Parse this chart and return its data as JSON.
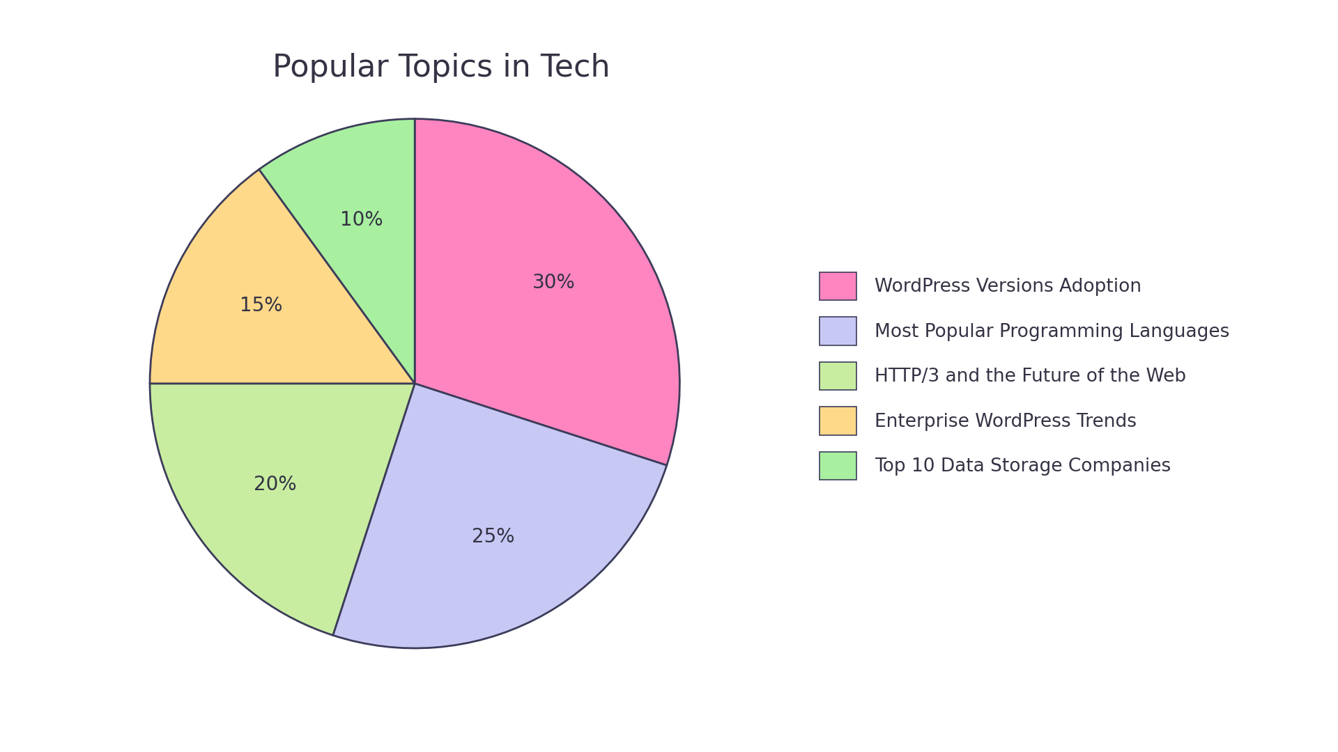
{
  "title": "Popular Topics in Tech",
  "labels": [
    "WordPress Versions Adoption",
    "Most Popular Programming Languages",
    "HTTP/3 and the Future of the Web",
    "Enterprise WordPress Trends",
    "Top 10 Data Storage Companies"
  ],
  "values": [
    30,
    25,
    20,
    15,
    10
  ],
  "colors": [
    "#FF85C0",
    "#C8C8F5",
    "#C8EDA0",
    "#FFD98A",
    "#A8F0A0"
  ],
  "text_color": "#333344",
  "background_color": "#FFFFFF",
  "title_fontsize": 32,
  "label_fontsize": 20,
  "legend_fontsize": 19,
  "startangle": 90,
  "wedge_edge_color": "#3C3C5A",
  "wedge_linewidth": 2.0
}
